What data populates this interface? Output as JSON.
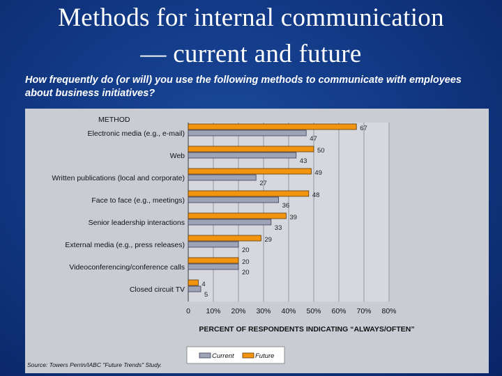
{
  "title_line1": "Methods for internal communication",
  "title_line2": "— current and future",
  "subtitle": "How frequently do (or will) you use the following methods to communicate with employees about business initiatives?",
  "source": "Source: Towers Perrin/IABC \"Future Trends\" Study.",
  "colors": {
    "current": "#9ea3b8",
    "future": "#f29410",
    "background": "#123a86",
    "panel": "#c9ccd3"
  },
  "chart_data": {
    "type": "bar",
    "orientation": "horizontal",
    "category_header": "METHOD",
    "categories": [
      "Electronic media (e.g., e-mail)",
      "Web",
      "Written publications (local and corporate)",
      "Face to face (e.g., meetings)",
      "Senior leadership interactions",
      "External media (e.g., press releases)",
      "Videoconferencing/conference calls",
      "Closed circuit TV"
    ],
    "series": [
      {
        "name": "Future",
        "values": [
          67,
          50,
          49,
          48,
          39,
          29,
          20,
          4
        ]
      },
      {
        "name": "Current",
        "values": [
          47,
          43,
          27,
          36,
          33,
          20,
          20,
          5
        ]
      }
    ],
    "xlabel": "PERCENT OF RESPONDENTS INDICATING “ALWAYS/OFTEN”",
    "xticks": [
      "0",
      "10%",
      "20%",
      "30%",
      "40%",
      "50%",
      "60%",
      "70%",
      "80%"
    ],
    "xlim": [
      0,
      80
    ],
    "legend": [
      "Current",
      "Future"
    ],
    "legend_position": "bottom-center"
  }
}
